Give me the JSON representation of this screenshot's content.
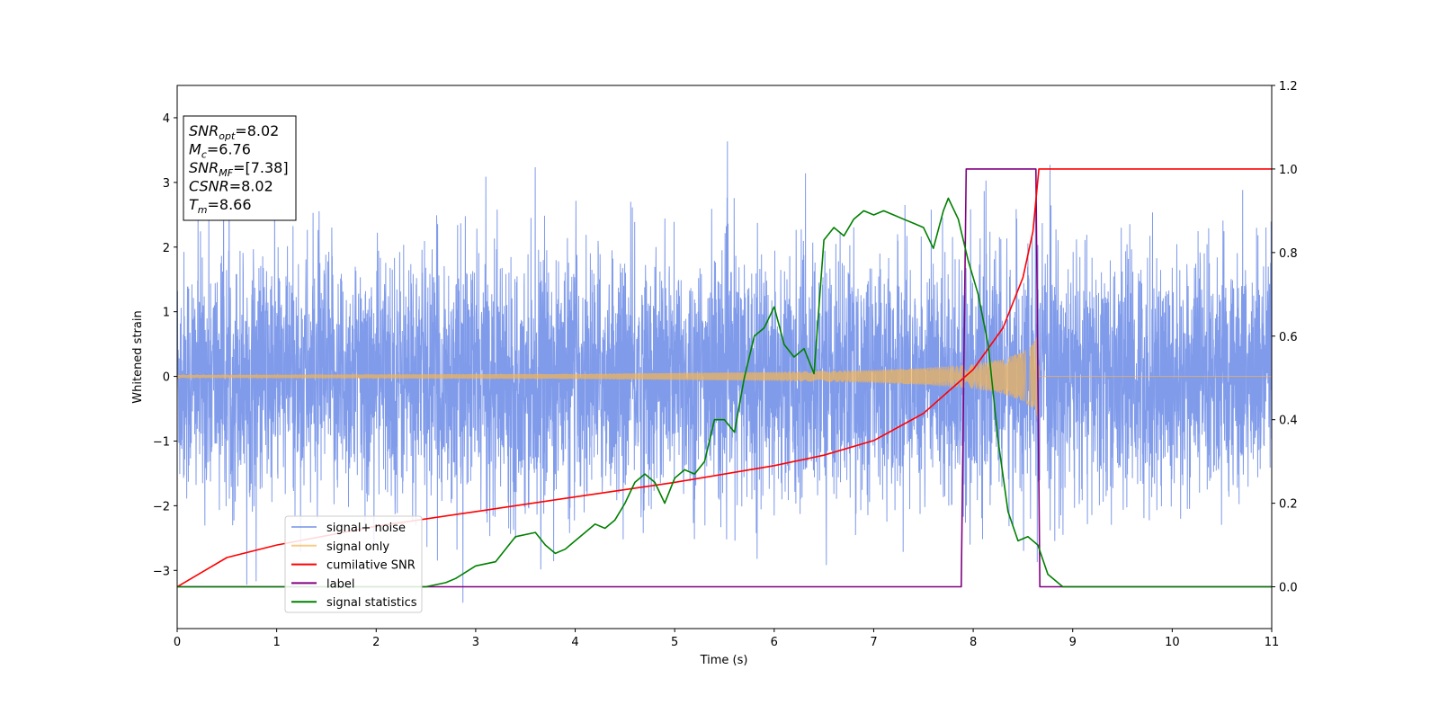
{
  "chart_data": {
    "type": "line",
    "xlabel": "Time (s)",
    "ylabel": "Whitened strain",
    "xlim": [
      0,
      11
    ],
    "ylim_left": [
      -3.9,
      4.5
    ],
    "ylim_right": [
      -0.1,
      1.2
    ],
    "x_ticks": [
      0,
      1,
      2,
      3,
      4,
      5,
      6,
      7,
      8,
      9,
      10,
      11
    ],
    "y_ticks_left": [
      -3,
      -2,
      -1,
      0,
      1,
      2,
      3,
      4
    ],
    "y_ticks_right": [
      0.0,
      0.2,
      0.4,
      0.6,
      0.8,
      1.0,
      1.2
    ],
    "y_tick_labels_left": [
      "−3",
      "−2",
      "−1",
      "0",
      "1",
      "2",
      "3",
      "4"
    ],
    "y_tick_labels_right": [
      "0.0",
      "0.2",
      "0.4",
      "0.6",
      "0.8",
      "1.0",
      "1.2"
    ],
    "grid": false,
    "legend_position": "lower-left",
    "info_box": [
      {
        "base": "SNR",
        "sub": "opt",
        "value": "=8.02"
      },
      {
        "base": "M",
        "sub": "c",
        "value": "=6.76"
      },
      {
        "base": "SNR",
        "sub": "MF",
        "value": "=[7.38]"
      },
      {
        "base": "CSNR",
        "sub": "",
        "value": "=8.02"
      },
      {
        "base": "T",
        "sub": "m",
        "value": "=8.66"
      }
    ],
    "merger_time": 8.66,
    "series": [
      {
        "name": "signal+ noise",
        "color": "#6a8ae6",
        "axis": "left",
        "description_values": {
          "envelope_typical": [
            -2.0,
            2.3
          ],
          "extremes": [
            -3.5,
            4.17
          ]
        }
      },
      {
        "name": "signal only",
        "color": "#f5b553",
        "axis": "left",
        "amplitude_envelope": {
          "x": [
            0,
            4,
            6,
            7,
            7.5,
            8,
            8.3,
            8.5,
            8.6,
            8.66
          ],
          "amp": [
            0.02,
            0.04,
            0.07,
            0.1,
            0.13,
            0.19,
            0.27,
            0.38,
            0.5,
            0.7
          ]
        }
      },
      {
        "name": "cumilative SNR",
        "color": "#ff0000",
        "axis": "right",
        "x": [
          0,
          0.5,
          1,
          2,
          3,
          4,
          5,
          6,
          6.5,
          7,
          7.5,
          8,
          8.3,
          8.5,
          8.6,
          8.66,
          9,
          10,
          11
        ],
        "y": [
          0.0,
          0.07,
          0.1,
          0.145,
          0.18,
          0.215,
          0.25,
          0.29,
          0.315,
          0.35,
          0.415,
          0.52,
          0.62,
          0.74,
          0.85,
          1.0,
          1.0,
          1.0,
          1.0
        ]
      },
      {
        "name": "label",
        "color": "#800080",
        "axis": "right",
        "x": [
          0,
          7.88,
          7.93,
          8.63,
          8.67,
          11
        ],
        "y": [
          0,
          0,
          1,
          1,
          0,
          0
        ]
      },
      {
        "name": "signal statistics",
        "color": "#008000",
        "axis": "right",
        "x": [
          0,
          2.5,
          2.7,
          2.8,
          3.0,
          3.2,
          3.4,
          3.6,
          3.7,
          3.8,
          3.9,
          4.0,
          4.1,
          4.2,
          4.3,
          4.4,
          4.5,
          4.6,
          4.7,
          4.8,
          4.9,
          5.0,
          5.1,
          5.2,
          5.3,
          5.4,
          5.5,
          5.6,
          5.7,
          5.8,
          5.9,
          6.0,
          6.1,
          6.2,
          6.3,
          6.4,
          6.5,
          6.6,
          6.7,
          6.8,
          6.9,
          7.0,
          7.1,
          7.2,
          7.3,
          7.4,
          7.5,
          7.6,
          7.7,
          7.75,
          7.85,
          7.95,
          8.05,
          8.15,
          8.25,
          8.35,
          8.45,
          8.55,
          8.65,
          8.75,
          8.9,
          9.5,
          11
        ],
        "y": [
          0,
          0,
          0.01,
          0.02,
          0.05,
          0.06,
          0.12,
          0.13,
          0.1,
          0.08,
          0.09,
          0.11,
          0.13,
          0.15,
          0.14,
          0.16,
          0.2,
          0.25,
          0.27,
          0.25,
          0.2,
          0.26,
          0.28,
          0.27,
          0.3,
          0.4,
          0.4,
          0.37,
          0.5,
          0.6,
          0.62,
          0.67,
          0.58,
          0.55,
          0.57,
          0.51,
          0.83,
          0.86,
          0.84,
          0.88,
          0.9,
          0.89,
          0.9,
          0.89,
          0.88,
          0.87,
          0.86,
          0.81,
          0.9,
          0.93,
          0.88,
          0.78,
          0.7,
          0.58,
          0.35,
          0.18,
          0.11,
          0.12,
          0.1,
          0.03,
          0.0,
          0.0,
          0.0
        ]
      }
    ]
  }
}
